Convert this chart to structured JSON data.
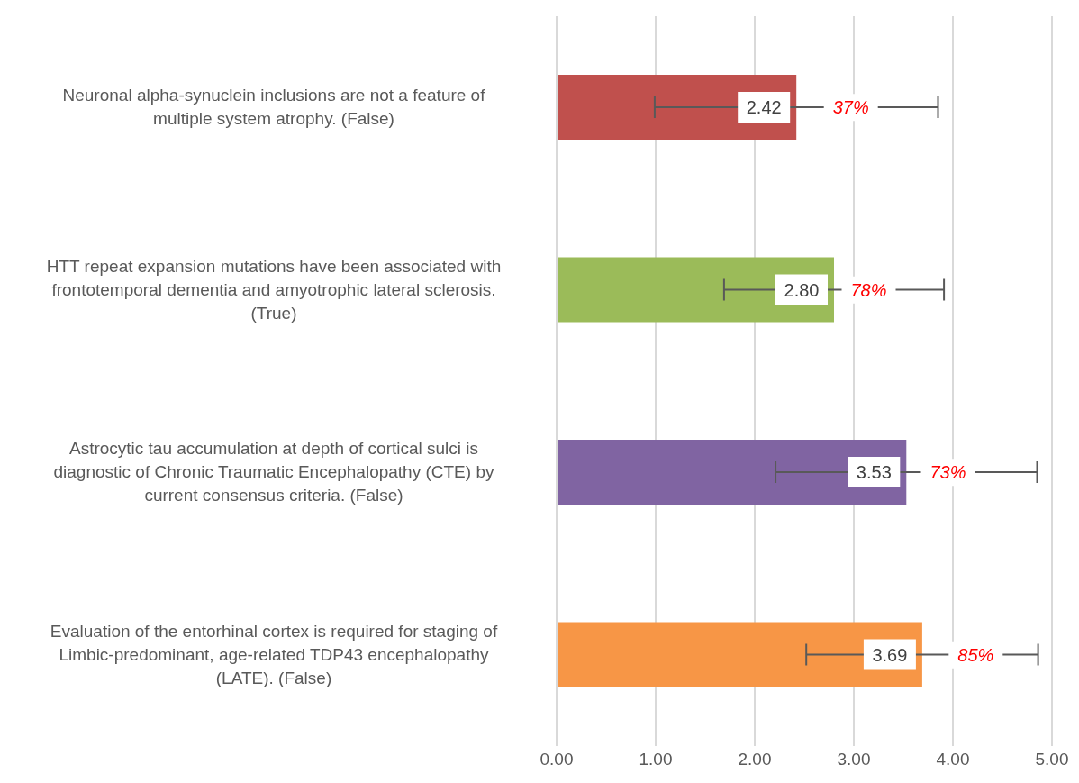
{
  "chart_data": {
    "type": "bar",
    "orientation": "horizontal",
    "categories": [
      "Neuronal alpha-synuclein inclusions are not a feature of\nmultiple system atrophy. (False)",
      "HTT repeat expansion mutations have been associated with\nfrontotemporal dementia and amyotrophic lateral sclerosis.\n(True)",
      "Astrocytic tau accumulation at depth of cortical sulci is\ndiagnostic of Chronic Traumatic Encephalopathy (CTE) by\ncurrent consensus criteria. (False)",
      "Evaluation of the entorhinal cortex is required for staging of\nLimbic-predominant, age-related TDP43 encephalopathy\n(LATE). (False)"
    ],
    "values": [
      2.42,
      2.8,
      3.53,
      3.69
    ],
    "colors": [
      "#c0504d",
      "#9bbb59",
      "#8064a2",
      "#f79646"
    ],
    "errors": [
      1.43,
      1.11,
      1.32,
      1.17
    ],
    "value_labels": [
      "2.42",
      "2.80",
      "3.53",
      "3.69"
    ],
    "xlim": [
      0,
      5
    ],
    "xticks": [
      {
        "value": 0,
        "label": "0.00"
      },
      {
        "value": 1,
        "label": "1.00"
      },
      {
        "value": 2,
        "label": "2.00"
      },
      {
        "value": 3,
        "label": "3.00"
      },
      {
        "value": 4,
        "label": "4.00"
      },
      {
        "value": 5,
        "label": "5.00"
      }
    ],
    "grid": "x",
    "annotations": [
      {
        "text": "37%",
        "x": 2.97,
        "y": "Neuronal alpha-synuclein inclusions are not a feature of\nmultiple system atrophy. (False)"
      },
      {
        "text": "78%",
        "x": 3.15,
        "y": "HTT repeat expansion mutations have been associated with\nfrontotemporal dementia and amyotrophic lateral sclerosis.\n(True)"
      },
      {
        "text": "73%",
        "x": 3.95,
        "y": "Astrocytic tau accumulation at depth of cortical sulci is\ndiagnostic of Chronic Traumatic Encephalopathy (CTE) by\ncurrent consensus criteria. (False)"
      },
      {
        "text": "85%",
        "x": 4.23,
        "y": "Evaluation of the entorhinal cortex is required for staging of\nLimbic-predominant, age-related TDP43 encephalopathy\n(LATE). (False)"
      }
    ]
  }
}
